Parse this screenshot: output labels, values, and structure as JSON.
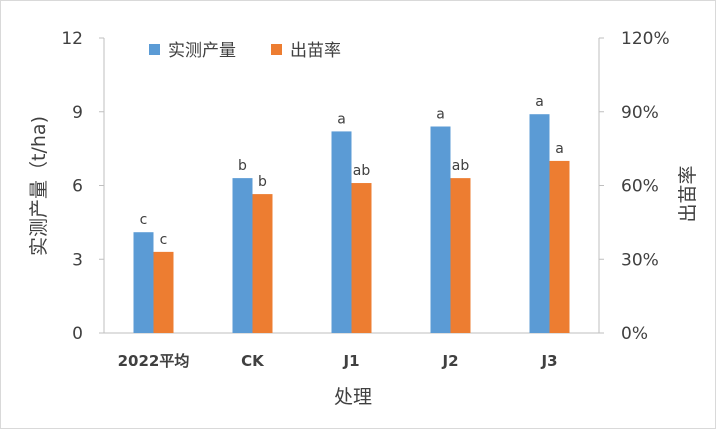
{
  "chart_data": {
    "type": "bar",
    "categories": [
      "2022平均",
      "CK",
      "J1",
      "J2",
      "J3"
    ],
    "series": [
      {
        "name": "实测产量",
        "axis": "left",
        "color": "#5b9bd5",
        "values": [
          4.1,
          6.3,
          8.2,
          8.4,
          8.9
        ],
        "labels": [
          "c",
          "b",
          "a",
          "a",
          "a"
        ]
      },
      {
        "name": "出苗率",
        "axis": "right",
        "color": "#ed7d31",
        "values": [
          33,
          56.5,
          61,
          63,
          70
        ],
        "labels": [
          "c",
          "b",
          "ab",
          "ab",
          "a"
        ]
      }
    ],
    "xlabel": "处理",
    "ylabel": "实测产量（t/ha)",
    "y2label": "出苗率",
    "ylim": [
      0,
      12
    ],
    "yticks": [
      "0",
      "3",
      "6",
      "9",
      "12"
    ],
    "y2lim": [
      0,
      120
    ],
    "y2ticks": [
      "0%",
      "30%",
      "60%",
      "90%",
      "120%"
    ],
    "grid": false,
    "legend": "top-left"
  }
}
